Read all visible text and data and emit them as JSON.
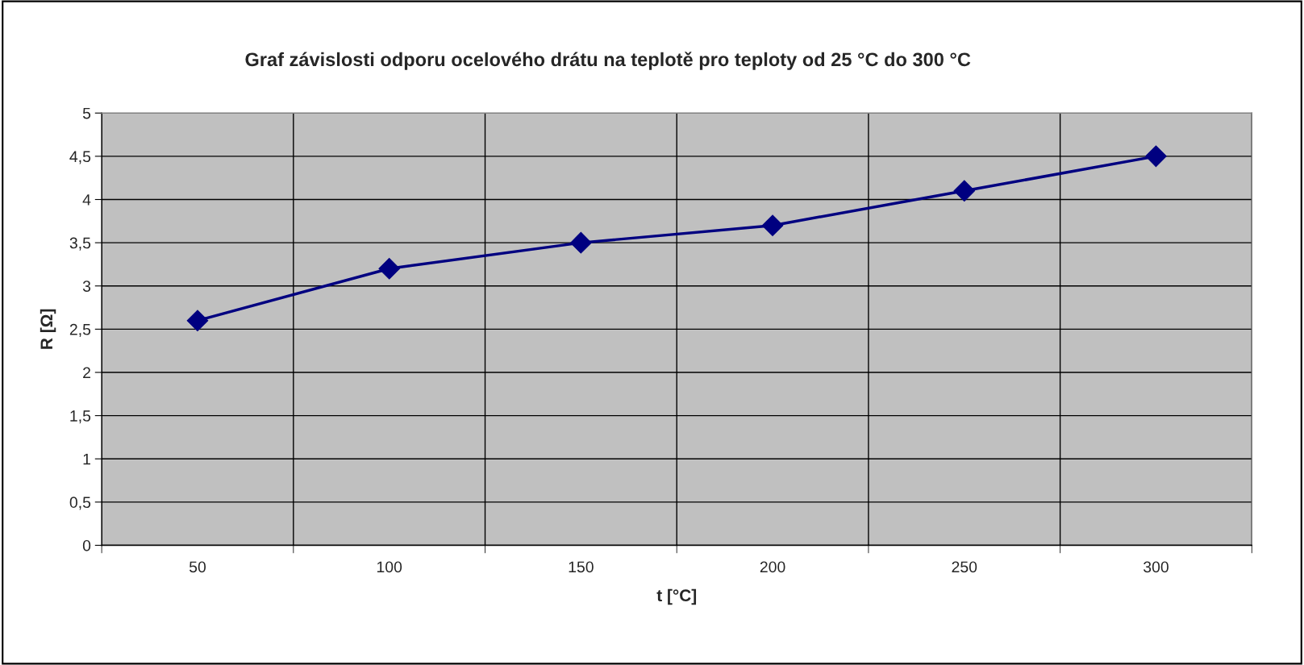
{
  "chart_data": {
    "type": "line",
    "title": "Graf závislosti odporu ocelového drátu na teplotě pro teploty od 25 °C do 300 °C",
    "xlabel": "t [°C]",
    "ylabel": "R [Ω]",
    "categories": [
      "50",
      "100",
      "150",
      "200",
      "250",
      "300"
    ],
    "series": [
      {
        "color": "#000080",
        "values": [
          2.6,
          3.2,
          3.5,
          3.7,
          4.1,
          4.5
        ]
      }
    ],
    "ylim": [
      0,
      5
    ],
    "yticks": [
      0,
      {
        "value": 0.5,
        "label": "0,5"
      },
      1,
      {
        "value": 1.5,
        "label": "1,5"
      },
      2,
      {
        "value": 2.5,
        "label": "2,5"
      },
      3,
      {
        "value": 3.5,
        "label": "3,5"
      },
      4,
      {
        "value": 4.5,
        "label": "4,5"
      },
      5
    ],
    "grid": true,
    "marker": "diamond",
    "line_style": "solid"
  }
}
